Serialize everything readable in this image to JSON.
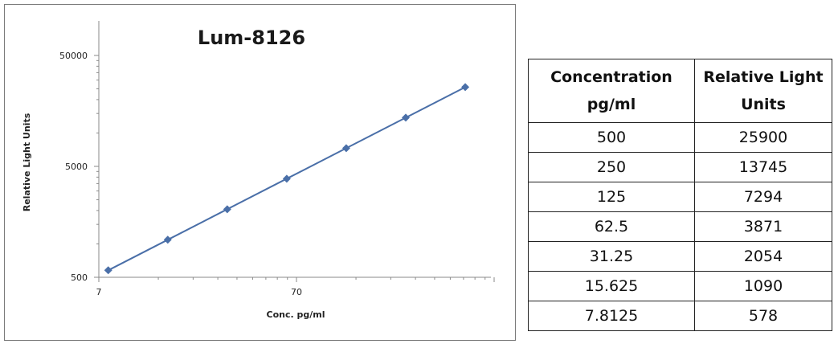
{
  "chart_data": {
    "type": "scatter",
    "title": "Lum-8126",
    "xlabel": "Conc. pg/ml",
    "ylabel": "Relative Light Units",
    "x_scale": "log",
    "y_scale": "log",
    "xlim": [
      7,
      700
    ],
    "ylim": [
      500,
      100000
    ],
    "x_tick_labels": [
      "7",
      "70"
    ],
    "y_tick_labels": [
      "500",
      "5000",
      "50000"
    ],
    "series": [
      {
        "x": [
          7.8125,
          15.625,
          31.25,
          62.5,
          125,
          250,
          500
        ],
        "y": [
          578,
          1090,
          2054,
          3871,
          7294,
          13745,
          25900
        ]
      }
    ],
    "grid": false,
    "colors": {
      "series": "#4a6fa8"
    }
  },
  "table": {
    "headers": [
      "Concentration pg/ml",
      "Relative Light Units"
    ],
    "rows": [
      [
        "500",
        "25900"
      ],
      [
        "250",
        "13745"
      ],
      [
        "125",
        "7294"
      ],
      [
        "62.5",
        "3871"
      ],
      [
        "31.25",
        "2054"
      ],
      [
        "15.625",
        "1090"
      ],
      [
        "7.8125",
        "578"
      ]
    ]
  }
}
